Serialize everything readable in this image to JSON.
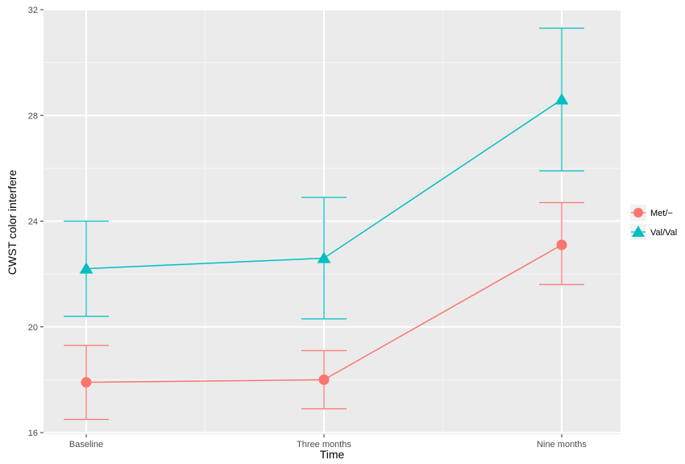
{
  "chart_data": {
    "type": "line",
    "title": "",
    "xlabel": "Time",
    "ylabel": "CWST color interfere",
    "categories": [
      "Baseline",
      "Three months",
      "Nine months"
    ],
    "ylim": [
      16,
      32
    ],
    "yticks": [
      16,
      20,
      24,
      28,
      32
    ],
    "grid": true,
    "legend_position": "right",
    "series": [
      {
        "name": "Met/−",
        "marker": "circle",
        "color": "#F8766D",
        "values": [
          17.9,
          18.0,
          23.1
        ],
        "error_low": [
          16.5,
          16.9,
          21.6
        ],
        "error_high": [
          19.3,
          19.1,
          24.7
        ]
      },
      {
        "name": "Val/Val",
        "marker": "triangle",
        "color": "#00BFC4",
        "values": [
          22.2,
          22.6,
          28.6
        ],
        "error_low": [
          20.4,
          20.3,
          25.9
        ],
        "error_high": [
          24.0,
          24.9,
          31.3
        ]
      }
    ]
  }
}
